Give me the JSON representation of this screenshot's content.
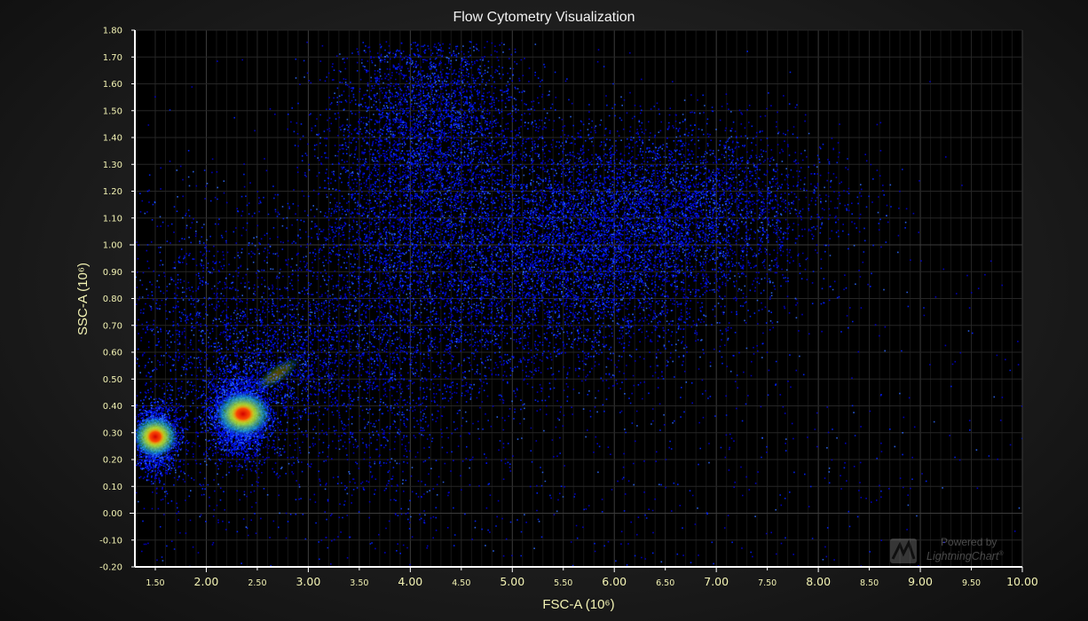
{
  "chart_data": {
    "type": "heatmap",
    "title": "Flow Cytometry Visualization",
    "xlabel": "FSC-A (10⁶)",
    "ylabel": "SSC-A (10⁶)",
    "xlim": [
      1.3,
      10.0
    ],
    "ylim": [
      -0.2,
      1.8
    ],
    "x_ticks": [
      {
        "value": 1.5,
        "label": "1.50",
        "major": false
      },
      {
        "value": 2.0,
        "label": "2.00",
        "major": true
      },
      {
        "value": 2.5,
        "label": "2.50",
        "major": false
      },
      {
        "value": 3.0,
        "label": "3.00",
        "major": true
      },
      {
        "value": 3.5,
        "label": "3.50",
        "major": false
      },
      {
        "value": 4.0,
        "label": "4.00",
        "major": true
      },
      {
        "value": 4.5,
        "label": "4.50",
        "major": false
      },
      {
        "value": 5.0,
        "label": "5.00",
        "major": true
      },
      {
        "value": 5.5,
        "label": "5.50",
        "major": false
      },
      {
        "value": 6.0,
        "label": "6.00",
        "major": true
      },
      {
        "value": 6.5,
        "label": "6.50",
        "major": false
      },
      {
        "value": 7.0,
        "label": "7.00",
        "major": true
      },
      {
        "value": 7.5,
        "label": "7.50",
        "major": false
      },
      {
        "value": 8.0,
        "label": "8.00",
        "major": true
      },
      {
        "value": 8.5,
        "label": "8.50",
        "major": false
      },
      {
        "value": 9.0,
        "label": "9.00",
        "major": true
      },
      {
        "value": 9.5,
        "label": "9.50",
        "major": false
      },
      {
        "value": 10.0,
        "label": "10.00",
        "major": true
      }
    ],
    "y_ticks": [
      {
        "value": -0.2,
        "label": "-0.20",
        "major": false
      },
      {
        "value": -0.1,
        "label": "-0.10",
        "major": false
      },
      {
        "value": 0.0,
        "label": "0.00",
        "major": true
      },
      {
        "value": 0.1,
        "label": "0.10",
        "major": false
      },
      {
        "value": 0.2,
        "label": "0.20",
        "major": false
      },
      {
        "value": 0.3,
        "label": "0.30",
        "major": false
      },
      {
        "value": 0.4,
        "label": "0.40",
        "major": false
      },
      {
        "value": 0.5,
        "label": "0.50",
        "major": false
      },
      {
        "value": 0.6,
        "label": "0.60",
        "major": false
      },
      {
        "value": 0.7,
        "label": "0.70",
        "major": false
      },
      {
        "value": 0.8,
        "label": "0.80",
        "major": false
      },
      {
        "value": 0.9,
        "label": "0.90",
        "major": false
      },
      {
        "value": 1.0,
        "label": "1.00",
        "major": true
      },
      {
        "value": 1.1,
        "label": "1.10",
        "major": false
      },
      {
        "value": 1.2,
        "label": "1.20",
        "major": false
      },
      {
        "value": 1.3,
        "label": "1.30",
        "major": false
      },
      {
        "value": 1.4,
        "label": "1.40",
        "major": false
      },
      {
        "value": 1.5,
        "label": "1.50",
        "major": false
      },
      {
        "value": 1.6,
        "label": "1.60",
        "major": false
      },
      {
        "value": 1.7,
        "label": "1.70",
        "major": false
      },
      {
        "value": 1.8,
        "label": "1.80",
        "major": false
      }
    ],
    "grid": true,
    "colormap": [
      "#0000cc",
      "#0022ff",
      "#2e6bff",
      "#22d1a0",
      "#b4e61e",
      "#ffd200",
      "#ff3a00",
      "#d10000"
    ],
    "populations": [
      {
        "x": 4.25,
        "y": 1.45,
        "sx": 0.42,
        "sy": 0.22,
        "count": 5200
      },
      {
        "x": 4.3,
        "y": 0.95,
        "sx": 0.65,
        "sy": 0.35,
        "count": 9000
      },
      {
        "x": 3.7,
        "y": 0.85,
        "sx": 0.4,
        "sy": 0.4,
        "count": 3500
      },
      {
        "x": 5.6,
        "y": 0.95,
        "sx": 0.8,
        "sy": 0.2,
        "count": 5200
      },
      {
        "x": 6.6,
        "y": 1.15,
        "sx": 0.8,
        "sy": 0.15,
        "count": 3600
      },
      {
        "x": 2.1,
        "y": 0.6,
        "sx": 0.6,
        "sy": 0.3,
        "count": 4800
      },
      {
        "x": 1.5,
        "y": 0.28,
        "sx": 0.1,
        "sy": 0.06,
        "count": 3000
      },
      {
        "x": 2.33,
        "y": 0.37,
        "sx": 0.14,
        "sy": 0.07,
        "count": 3600
      },
      {
        "x": 2.8,
        "y": 0.55,
        "sx": 0.35,
        "sy": 0.12,
        "count": 900
      },
      {
        "x": 5.8,
        "y": 0.25,
        "sx": 2.5,
        "sy": 0.5,
        "count": 1200
      }
    ],
    "hotspots": [
      {
        "x": 1.5,
        "y": 0.285,
        "peak": "red"
      },
      {
        "x": 2.35,
        "y": 0.365,
        "peak": "red"
      }
    ]
  },
  "watermark": {
    "powered_by": "Powered by",
    "brand": "LightningChart",
    "trademark": "®",
    "logo_icon": "lightningchart-js-logo-icon"
  }
}
